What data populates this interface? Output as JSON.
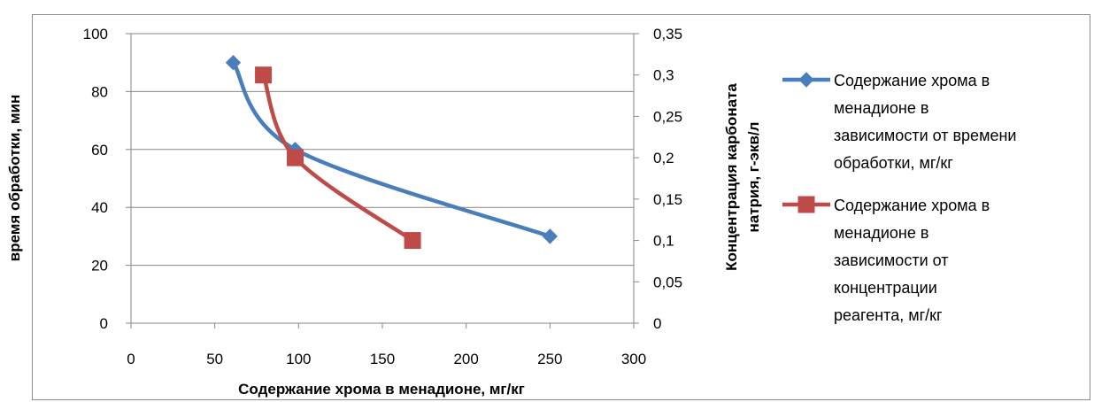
{
  "chart_data": {
    "type": "scatter",
    "xlabel": "Содержание хрома в менадионе, мг/кг",
    "ylabel_left": "время обработки, мин",
    "ylabel_right_lines": [
      "Концентрация карбоната",
      "натрия, г-экв/л"
    ],
    "xlim": [
      0,
      300
    ],
    "ylim_left": [
      0,
      100
    ],
    "ylim_right": [
      0,
      0.35
    ],
    "x_ticks": [
      "0",
      "50",
      "100",
      "150",
      "200",
      "250",
      "300"
    ],
    "y_left_ticks": [
      "0",
      "20",
      "40",
      "60",
      "80",
      "100"
    ],
    "y_right_ticks": [
      "0",
      "0,05",
      "0,1",
      "0,15",
      "0,2",
      "0,25",
      "0,3",
      "0,35"
    ],
    "grid": "horizontal",
    "legend_position": "right",
    "series": [
      {
        "name_lines": [
          "Содержание хрома в",
          "менадионе в",
          "зависимости от времени",
          "обработки, мг/кг"
        ],
        "axis": "left",
        "color": "#4a7ebb",
        "marker": "diamond",
        "smooth": true,
        "points": [
          [
            61,
            90
          ],
          [
            98,
            60
          ],
          [
            250,
            30
          ]
        ]
      },
      {
        "name_lines": [
          "Содержание хрома в",
          "менадионе в",
          "зависимости от",
          "концентрации",
          "реагента, мг/кг"
        ],
        "axis": "right",
        "color": "#be4b48",
        "marker": "square",
        "smooth": true,
        "points": [
          [
            79,
            0.3
          ],
          [
            98,
            0.2
          ],
          [
            168,
            0.1
          ]
        ]
      }
    ]
  }
}
